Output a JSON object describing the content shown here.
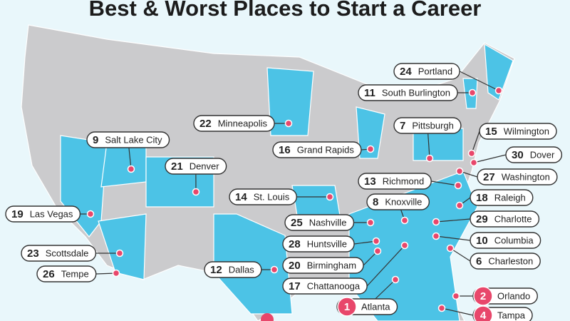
{
  "title": "Best & Worst Places to Start a Career",
  "places": [
    {
      "rank": 24,
      "city": "Portland"
    },
    {
      "rank": 11,
      "city": "South Burlington"
    },
    {
      "rank": 22,
      "city": "Minneapolis"
    },
    {
      "rank": 7,
      "city": "Pittsburgh"
    },
    {
      "rank": 15,
      "city": "Wilmington"
    },
    {
      "rank": 9,
      "city": "Salt Lake City"
    },
    {
      "rank": 16,
      "city": "Grand Rapids"
    },
    {
      "rank": 30,
      "city": "Dover"
    },
    {
      "rank": 21,
      "city": "Denver"
    },
    {
      "rank": 27,
      "city": "Washington"
    },
    {
      "rank": 13,
      "city": "Richmond"
    },
    {
      "rank": 14,
      "city": "St. Louis"
    },
    {
      "rank": 8,
      "city": "Knoxville"
    },
    {
      "rank": 18,
      "city": "Raleigh"
    },
    {
      "rank": 19,
      "city": "Las Vegas"
    },
    {
      "rank": 25,
      "city": "Nashville"
    },
    {
      "rank": 29,
      "city": "Charlotte"
    },
    {
      "rank": 28,
      "city": "Huntsville"
    },
    {
      "rank": 10,
      "city": "Columbia"
    },
    {
      "rank": 23,
      "city": "Scottsdale"
    },
    {
      "rank": 20,
      "city": "Birmingham"
    },
    {
      "rank": 6,
      "city": "Charleston"
    },
    {
      "rank": 12,
      "city": "Dallas"
    },
    {
      "rank": 26,
      "city": "Tempe"
    },
    {
      "rank": 17,
      "city": "Chattanooga"
    },
    {
      "rank": 1,
      "city": "Atlanta"
    },
    {
      "rank": 2,
      "city": "Orlando"
    },
    {
      "rank": 4,
      "city": "Tampa"
    }
  ]
}
